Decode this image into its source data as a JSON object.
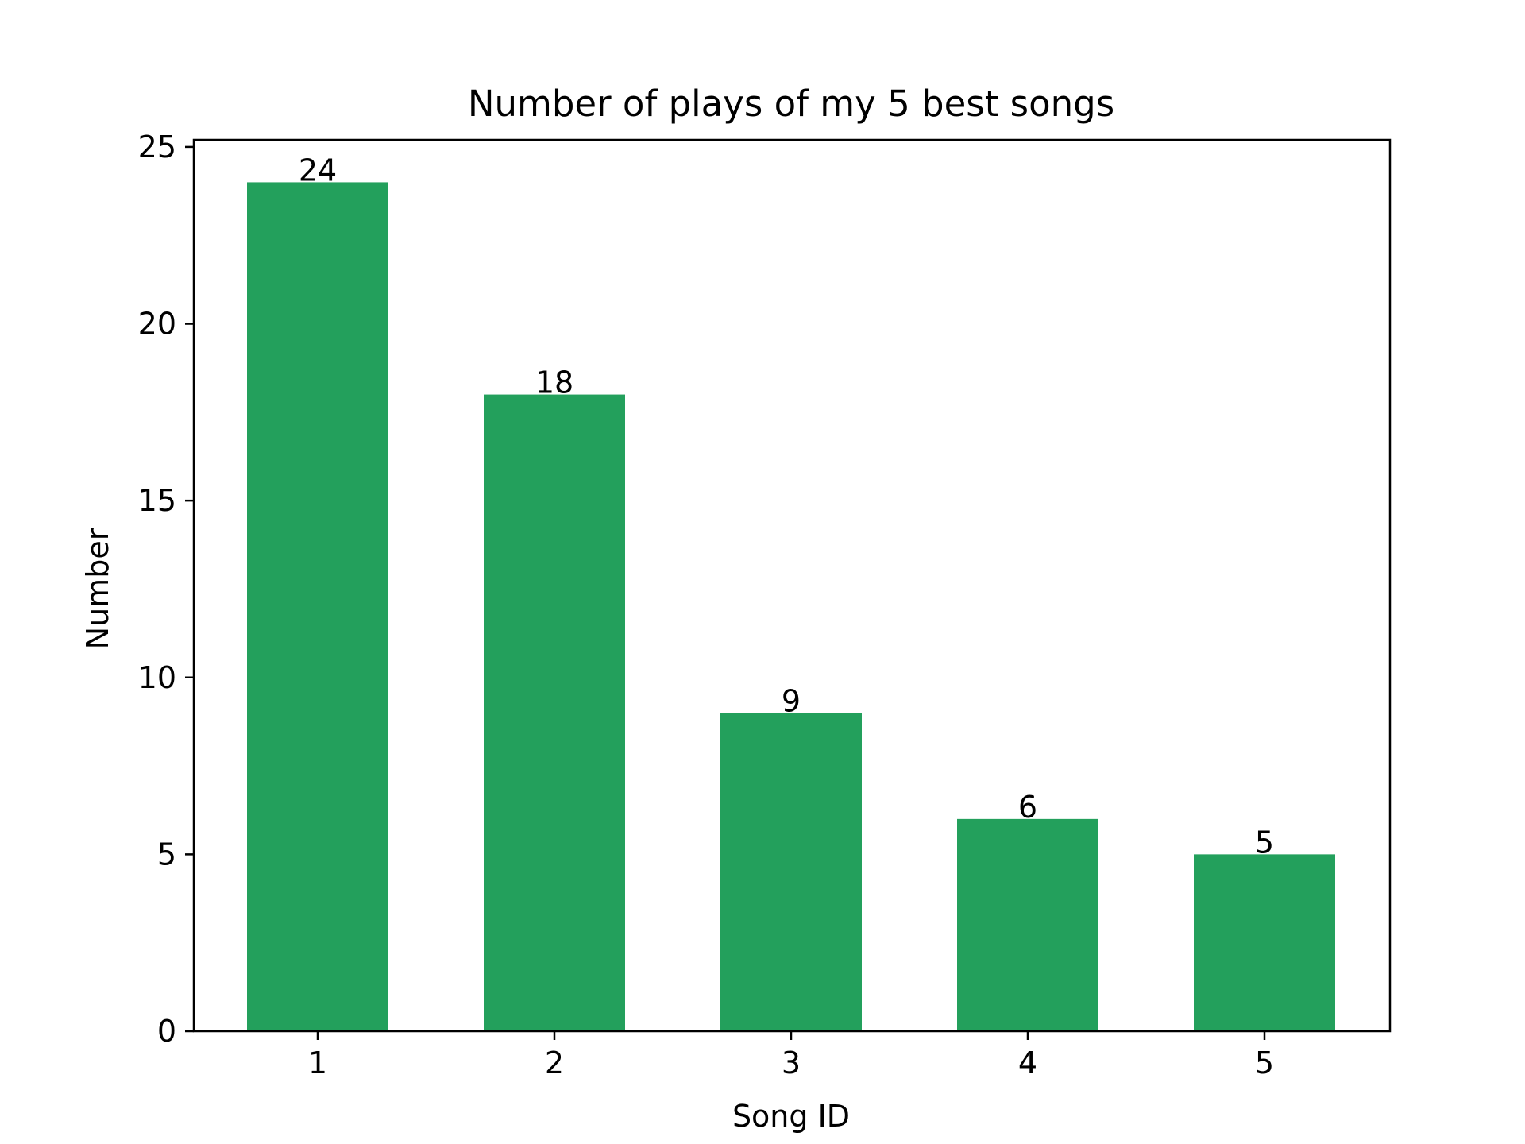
{
  "chart_data": {
    "type": "bar",
    "title": "Number of plays of my 5 best songs",
    "xlabel": "Song ID",
    "ylabel": "Number",
    "categories": [
      "1",
      "2",
      "3",
      "4",
      "5"
    ],
    "values": [
      24,
      18,
      9,
      6,
      5
    ],
    "data_labels": [
      "24",
      "18",
      "9",
      "6",
      "5"
    ],
    "ylim": [
      0,
      25.2
    ],
    "yticks": [
      0,
      5,
      10,
      15,
      20,
      25
    ],
    "ytick_labels": [
      "0",
      "5",
      "10",
      "15",
      "20",
      "25"
    ],
    "bar_color": "#23a05c",
    "grid": false,
    "legend": "none"
  }
}
